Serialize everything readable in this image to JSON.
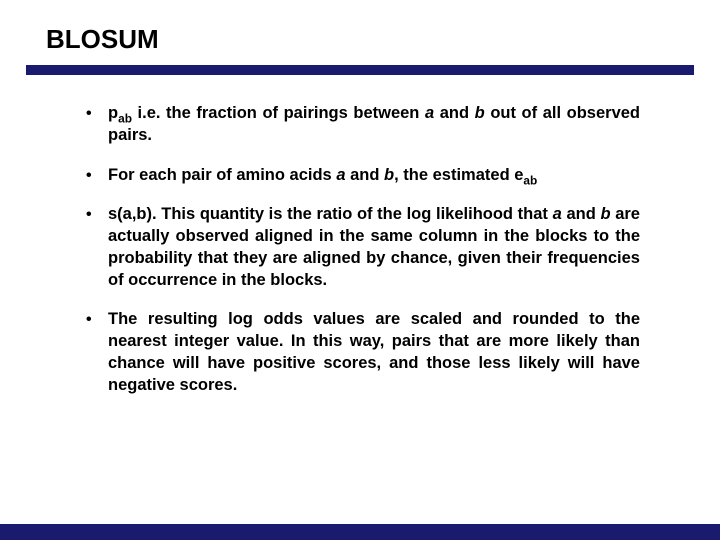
{
  "colors": {
    "accent": "#1a1a6e",
    "text": "#000000",
    "background": "#ffffff"
  },
  "typography": {
    "title_fontsize": 26,
    "body_fontsize": 16.5,
    "font_family": "Arial",
    "weight": "bold"
  },
  "title": "BLOSUM",
  "bullets": [
    {
      "html": "p<sub>ab</sub> i.e. the fraction of pairings between <span class=\"ital\">a</span> and <span class=\"ital\">b</span> out of all observed pairs."
    },
    {
      "html": "For each pair of amino acids <span class=\"ital\">a</span> and <span class=\"ital\">b</span>, the estimated e<sub>ab</sub>"
    },
    {
      "html": "s(a,b). This quantity is the ratio of the log likelihood that <span class=\"ital\">a</span> and <span class=\"ital\">b</span> are actually observed aligned in the same column in the blocks to the probability that they are aligned by chance, given their frequencies of occurrence in the blocks."
    },
    {
      "html": "The resulting log odds values are scaled and rounded to the nearest integer value. In this way, pairs that are more likely than chance will have positive scores, and those less likely will have negative scores."
    }
  ]
}
